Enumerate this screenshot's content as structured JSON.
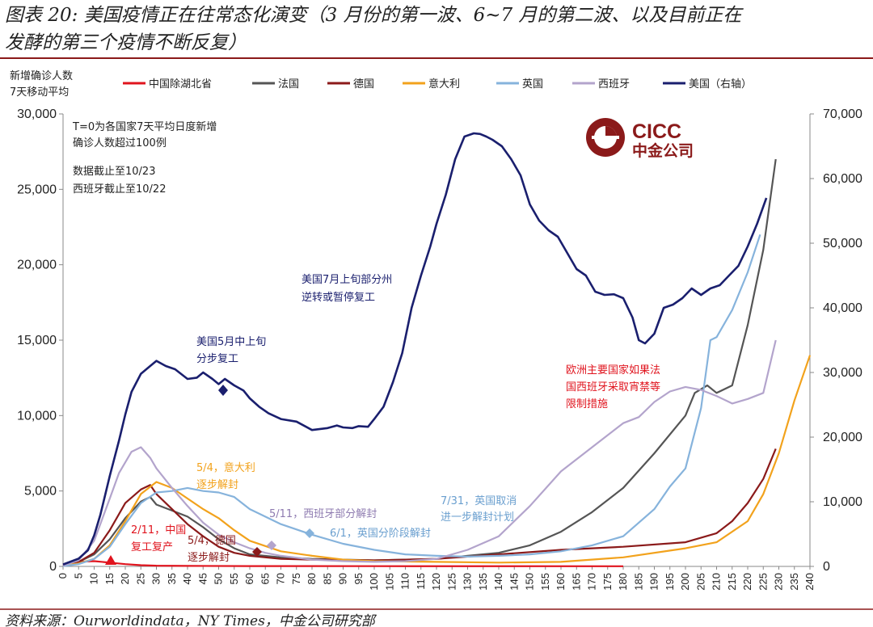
{
  "header": {
    "title_line1": "图表 20: 美国疫情正在往常态化演变（3 月份的第一波、6~7 月的第二波、以及目前正在",
    "title_line2": "发酵的第三个疫情不断反复）"
  },
  "footer": {
    "source": "资料来源：Ourworldindata，NY Times，中金公司研究部"
  },
  "logo": {
    "text_en": "CICC",
    "text_cn": "中金公司"
  },
  "colors": {
    "hubei": "#e0141e",
    "france": "#555555",
    "germany": "#8b1a1a",
    "italy": "#f2a21c",
    "uk": "#86b3dc",
    "spain": "#b3a4cc",
    "us": "#1a1f6e",
    "accent": "#8b1a1a",
    "rule": "#8b1a1a"
  },
  "chart_data": {
    "type": "line",
    "ylabel_line1": "新增确诊人数",
    "ylabel_line2": "7天移动平均",
    "ylim_left": [
      0,
      30000
    ],
    "ylim_right": [
      0,
      70000
    ],
    "xlim": [
      0,
      240
    ],
    "yticks_left": [
      "0",
      "5,000",
      "10,000",
      "15,000",
      "20,000",
      "25,000",
      "30,000"
    ],
    "yticks_right": [
      "0",
      "10,000",
      "20,000",
      "30,000",
      "40,000",
      "50,000",
      "60,000",
      "70,000"
    ],
    "xticks": [
      "0",
      "5",
      "10",
      "15",
      "20",
      "25",
      "30",
      "35",
      "40",
      "45",
      "50",
      "55",
      "60",
      "65",
      "70",
      "75",
      "80",
      "85",
      "90",
      "95",
      "100",
      "105",
      "110",
      "115",
      "120",
      "125",
      "130",
      "135",
      "140",
      "145",
      "150",
      "155",
      "160",
      "165",
      "170",
      "175",
      "180",
      "185",
      "190",
      "195",
      "200",
      "205",
      "210",
      "215",
      "220",
      "225",
      "230",
      "235",
      "240"
    ],
    "notes": [
      "T=0为各国家7天平均日度新增",
      "确诊人数超过100例",
      "数据截止至10/23",
      "西班牙截止至10/22"
    ],
    "series": [
      {
        "name": "中国除湖北省",
        "color": "#e0141e",
        "axis": "left",
        "x": [
          0,
          5,
          10,
          15,
          20,
          25,
          30,
          40,
          60,
          100,
          180
        ],
        "y": [
          150,
          300,
          350,
          250,
          150,
          80,
          50,
          30,
          20,
          15,
          10
        ]
      },
      {
        "name": "法国",
        "color": "#555555",
        "axis": "left",
        "x": [
          0,
          5,
          10,
          15,
          20,
          25,
          28,
          30,
          35,
          40,
          45,
          50,
          55,
          60,
          70,
          80,
          90,
          100,
          110,
          120,
          130,
          140,
          150,
          160,
          170,
          180,
          190,
          200,
          203,
          207,
          210,
          215,
          220,
          225,
          229
        ],
        "y": [
          50,
          300,
          800,
          1800,
          3200,
          4300,
          4600,
          4100,
          3700,
          3300,
          2600,
          1800,
          1200,
          800,
          600,
          500,
          450,
          400,
          450,
          500,
          700,
          900,
          1400,
          2300,
          3600,
          5200,
          7500,
          10000,
          11500,
          12000,
          11500,
          12000,
          16000,
          21000,
          27000
        ]
      },
      {
        "name": "德国",
        "color": "#8b1a1a",
        "axis": "left",
        "x": [
          0,
          5,
          10,
          15,
          20,
          25,
          28,
          30,
          35,
          40,
          45,
          50,
          55,
          60,
          70,
          80,
          100,
          120,
          140,
          160,
          180,
          200,
          210,
          215,
          220,
          225,
          229
        ],
        "y": [
          100,
          300,
          900,
          2400,
          4200,
          5100,
          5400,
          4800,
          3800,
          2800,
          2000,
          1300,
          900,
          700,
          500,
          450,
          400,
          500,
          800,
          1100,
          1300,
          1600,
          2200,
          3000,
          4200,
          5800,
          7800
        ]
      },
      {
        "name": "意大利",
        "color": "#f2a21c",
        "axis": "left",
        "x": [
          0,
          5,
          10,
          15,
          20,
          25,
          30,
          35,
          40,
          45,
          50,
          55,
          60,
          70,
          80,
          90,
          100,
          120,
          140,
          160,
          180,
          200,
          210,
          220,
          225,
          230,
          235,
          240
        ],
        "y": [
          50,
          200,
          500,
          1400,
          3000,
          4800,
          5600,
          5200,
          4500,
          3800,
          3200,
          2400,
          1700,
          1000,
          700,
          450,
          350,
          300,
          250,
          300,
          600,
          1200,
          1600,
          3000,
          4800,
          7500,
          11000,
          14000
        ]
      },
      {
        "name": "英国",
        "color": "#86b3dc",
        "axis": "left",
        "x": [
          0,
          5,
          10,
          15,
          20,
          25,
          30,
          35,
          40,
          45,
          50,
          55,
          60,
          70,
          80,
          90,
          100,
          110,
          120,
          130,
          140,
          150,
          160,
          170,
          180,
          190,
          195,
          200,
          205,
          208,
          210,
          215,
          220,
          224
        ],
        "y": [
          20,
          150,
          500,
          1300,
          2800,
          4200,
          4900,
          5000,
          5200,
          5000,
          4900,
          4600,
          3800,
          2800,
          2100,
          1500,
          1100,
          800,
          700,
          650,
          700,
          800,
          1000,
          1400,
          2000,
          3800,
          5300,
          6500,
          10500,
          15000,
          15200,
          17000,
          19500,
          22000
        ]
      },
      {
        "name": "西班牙",
        "color": "#b3a4cc",
        "axis": "left",
        "x": [
          0,
          5,
          10,
          15,
          18,
          22,
          25,
          28,
          30,
          35,
          40,
          45,
          50,
          55,
          60,
          65,
          70,
          80,
          90,
          100,
          110,
          120,
          130,
          140,
          150,
          160,
          170,
          180,
          185,
          190,
          195,
          200,
          205,
          210,
          215,
          220,
          225,
          229
        ],
        "y": [
          50,
          400,
          1700,
          4500,
          6200,
          7600,
          7900,
          7200,
          6500,
          5200,
          4000,
          2900,
          2100,
          1600,
          1200,
          900,
          700,
          450,
          350,
          300,
          350,
          500,
          1100,
          2000,
          4000,
          6300,
          7900,
          9500,
          9900,
          10900,
          11600,
          11900,
          11700,
          11300,
          10800,
          11100,
          11500,
          15000
        ]
      },
      {
        "name": "美国（右轴）",
        "color": "#1a1f6e",
        "axis": "right",
        "x": [
          0,
          5,
          8,
          10,
          12,
          15,
          18,
          20,
          22,
          25,
          28,
          30,
          33,
          36,
          40,
          43,
          45,
          48,
          50,
          52,
          55,
          58,
          60,
          63,
          66,
          70,
          75,
          80,
          85,
          88,
          90,
          93,
          95,
          98,
          100,
          103,
          106,
          109,
          112,
          115,
          118,
          120,
          123,
          126,
          129,
          132,
          134,
          136,
          138,
          141,
          144,
          147,
          150,
          153,
          156,
          159,
          162,
          165,
          168,
          171,
          174,
          177,
          180,
          183,
          185,
          187,
          190,
          193,
          196,
          199,
          202,
          205,
          208,
          211,
          214,
          217,
          220,
          223,
          226
        ],
        "y": [
          300,
          1200,
          2500,
          4800,
          8000,
          14000,
          19500,
          23500,
          27000,
          29800,
          31000,
          31800,
          31000,
          30500,
          29000,
          29200,
          30000,
          29000,
          28200,
          29000,
          28000,
          27200,
          26000,
          24700,
          23700,
          22800,
          22400,
          21100,
          21400,
          21800,
          21500,
          21400,
          21700,
          21600,
          22800,
          24700,
          28500,
          33000,
          40000,
          45000,
          49500,
          53000,
          57500,
          63000,
          66500,
          67000,
          66900,
          66500,
          66000,
          65000,
          63000,
          60500,
          56000,
          53500,
          52000,
          51000,
          48500,
          46000,
          45000,
          42500,
          42000,
          42100,
          41500,
          38500,
          35000,
          34500,
          36000,
          40000,
          40500,
          41500,
          43000,
          42000,
          43000,
          43500,
          45000,
          46500,
          49500,
          53000,
          57000
        ]
      }
    ],
    "annotations": [
      {
        "lines": [
          "美国7月上旬部分州",
          "逆转或暂停复工"
        ],
        "color": "#1a1f6e"
      },
      {
        "lines": [
          "美国5月中上旬",
          "分步复工"
        ],
        "color": "#1a1f6e"
      },
      {
        "lines": [
          "5/4，意大利",
          "逐步解封"
        ],
        "color": "#f2a21c"
      },
      {
        "lines": [
          "5/11，西班牙部分解封"
        ],
        "color": "#8e7bb0"
      },
      {
        "lines": [
          "6/1，英国分阶段解封"
        ],
        "color": "#6a9fcf"
      },
      {
        "lines": [
          "7/31，英国取消",
          "进一步解封计划"
        ],
        "color": "#6a9fcf"
      },
      {
        "lines": [
          "欧洲主要国家如果法",
          "国西班牙采取宵禁等",
          "限制措施"
        ],
        "color": "#e0141e"
      },
      {
        "lines": [
          "2/11，中国",
          "复工复产"
        ],
        "color": "#e0141e"
      },
      {
        "lines": [
          "5/4，德国",
          "逐步解封"
        ],
        "color": "#8b1a1a"
      }
    ]
  }
}
